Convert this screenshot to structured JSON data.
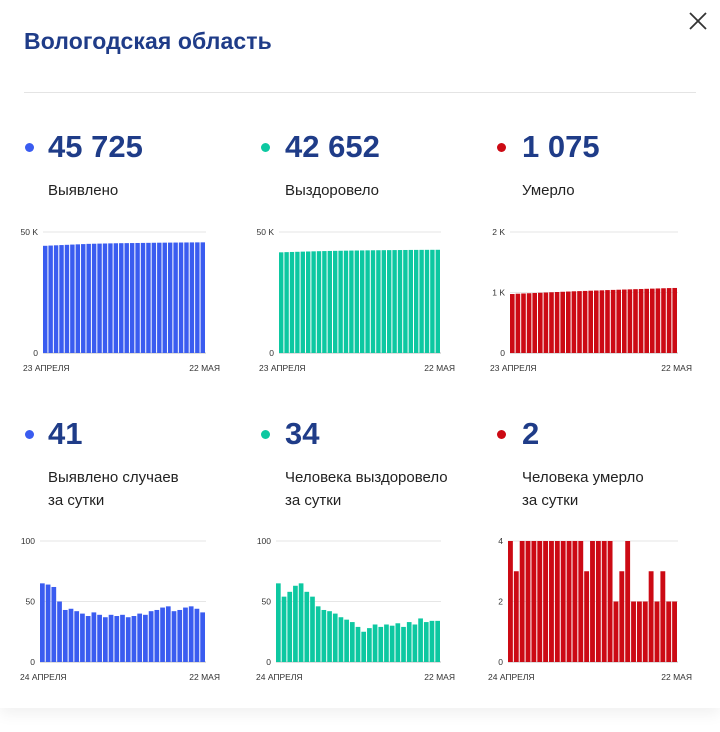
{
  "title": "Вологодская область",
  "close_icon": "close-icon",
  "colors": {
    "blue": "#3a5cf0",
    "teal": "#0dc8a1",
    "red": "#cc0a14",
    "title": "#1f3c88"
  },
  "stats": [
    {
      "value": "45 725",
      "label": "Выявлено",
      "label2": "",
      "color": "#3a5cf0"
    },
    {
      "value": "42 652",
      "label": "Выздоровело",
      "label2": "",
      "color": "#0dc8a1"
    },
    {
      "value": "1 075",
      "label": "Умерло",
      "label2": "",
      "color": "#cc0a14"
    },
    {
      "value": "41",
      "label": "Выявлено случаев",
      "label2": "за сутки",
      "color": "#3a5cf0"
    },
    {
      "value": "34",
      "label": "Человека выздоровело",
      "label2": "за сутки",
      "color": "#0dc8a1"
    },
    {
      "value": "2",
      "label": "Человека умерло",
      "label2": "за сутки",
      "color": "#cc0a14"
    }
  ],
  "chart_data": [
    {
      "type": "bar",
      "color": "#3a5cf0",
      "x_start": "23 АПРЕЛЯ",
      "x_end": "22 МАЯ",
      "yticks": [
        "50 K",
        "0"
      ],
      "tick_values": [
        50000,
        0
      ],
      "ylim": [
        0,
        50000
      ],
      "values": [
        44300,
        44400,
        44500,
        44600,
        44700,
        44800,
        44900,
        45000,
        45100,
        45150,
        45200,
        45250,
        45300,
        45350,
        45380,
        45400,
        45430,
        45460,
        45490,
        45520,
        45550,
        45580,
        45600,
        45620,
        45640,
        45660,
        45680,
        45700,
        45715,
        45725
      ]
    },
    {
      "type": "bar",
      "color": "#0dc8a1",
      "x_start": "23 АПРЕЛЯ",
      "x_end": "22 МАЯ",
      "yticks": [
        "50 K",
        "0"
      ],
      "tick_values": [
        50000,
        0
      ],
      "ylim": [
        0,
        50000
      ],
      "values": [
        41600,
        41680,
        41750,
        41820,
        41890,
        41950,
        42010,
        42070,
        42120,
        42170,
        42210,
        42250,
        42290,
        42330,
        42360,
        42390,
        42420,
        42450,
        42470,
        42490,
        42510,
        42530,
        42550,
        42570,
        42590,
        42605,
        42620,
        42632,
        42640,
        42652
      ]
    },
    {
      "type": "bar",
      "color": "#cc0a14",
      "x_start": "23 АПРЕЛЯ",
      "x_end": "22 МАЯ",
      "yticks": [
        "2 K",
        "1 K",
        "0"
      ],
      "tick_values": [
        2000,
        1000,
        0
      ],
      "ylim": [
        0,
        2000
      ],
      "values": [
        975,
        980,
        984,
        988,
        992,
        996,
        1000,
        1004,
        1008,
        1012,
        1016,
        1020,
        1023,
        1026,
        1030,
        1033,
        1036,
        1040,
        1043,
        1046,
        1049,
        1052,
        1055,
        1058,
        1061,
        1064,
        1067,
        1070,
        1073,
        1075
      ]
    },
    {
      "type": "bar",
      "color": "#3a5cf0",
      "x_start": "24 АПРЕЛЯ",
      "x_end": "22 МАЯ",
      "yticks": [
        "100",
        "50",
        "0"
      ],
      "tick_values": [
        100,
        50,
        0
      ],
      "ylim": [
        0,
        100
      ],
      "values": [
        65,
        64,
        62,
        50,
        43,
        44,
        42,
        40,
        38,
        41,
        39,
        37,
        39,
        38,
        39,
        37,
        38,
        40,
        39,
        42,
        43,
        45,
        46,
        42,
        43,
        45,
        46,
        44,
        41
      ]
    },
    {
      "type": "bar",
      "color": "#0dc8a1",
      "x_start": "24 АПРЕЛЯ",
      "x_end": "22 МАЯ",
      "yticks": [
        "100",
        "50",
        "0"
      ],
      "tick_values": [
        100,
        50,
        0
      ],
      "ylim": [
        0,
        100
      ],
      "values": [
        65,
        54,
        58,
        63,
        65,
        58,
        54,
        46,
        43,
        42,
        40,
        37,
        35,
        33,
        29,
        25,
        28,
        31,
        29,
        31,
        30,
        32,
        29,
        33,
        31,
        36,
        33,
        34,
        34
      ]
    },
    {
      "type": "bar",
      "color": "#cc0a14",
      "x_start": "24 АПРЕЛЯ",
      "x_end": "22 МАЯ",
      "yticks": [
        "4",
        "2",
        "0"
      ],
      "tick_values": [
        4,
        2,
        0
      ],
      "ylim": [
        0,
        4
      ],
      "values": [
        4,
        3,
        4,
        4,
        4,
        4,
        4,
        4,
        4,
        4,
        4,
        4,
        4,
        3,
        4,
        4,
        4,
        4,
        2,
        3,
        4,
        2,
        2,
        2,
        3,
        2,
        3,
        2,
        2
      ]
    }
  ]
}
